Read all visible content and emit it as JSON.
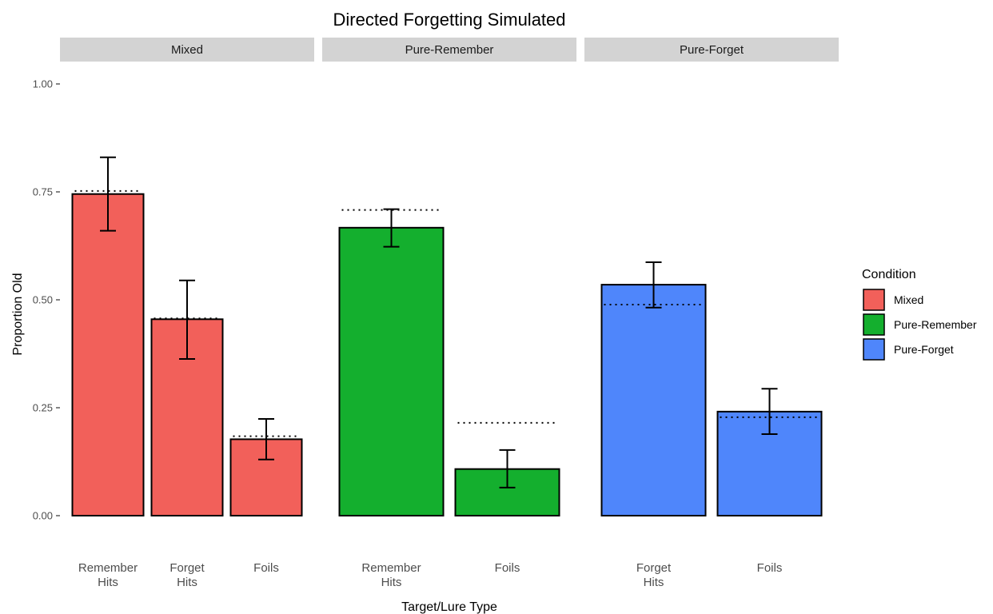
{
  "chart_data": {
    "type": "bar",
    "title": "Directed Forgetting Simulated",
    "xlabel": "Target/Lure Type",
    "ylabel": "Proportion Old",
    "ylim": [
      0,
      1
    ],
    "yticks": [
      "0.00",
      "0.25",
      "0.50",
      "0.75",
      "1.00"
    ],
    "legend": {
      "title": "Condition",
      "position": "right",
      "items": [
        {
          "name": "Mixed",
          "color": "#F8766D"
        },
        {
          "name": "Pure-Remember",
          "color": "#00BA38"
        },
        {
          "name": "Pure-Forget",
          "color": "#619CFF"
        }
      ]
    },
    "panels": [
      {
        "strip": "Mixed",
        "color": "#F2605A",
        "bars": [
          {
            "label": [
              "Remember",
              "Hits"
            ],
            "value": 0.745,
            "err_low": 0.66,
            "err_high": 0.83,
            "reference": 0.752
          },
          {
            "label": [
              "Forget",
              "Hits"
            ],
            "value": 0.455,
            "err_low": 0.363,
            "err_high": 0.545,
            "reference": 0.457
          },
          {
            "label": [
              "Foils"
            ],
            "value": 0.177,
            "err_low": 0.13,
            "err_high": 0.224,
            "reference": 0.184
          }
        ]
      },
      {
        "strip": "Pure-Remember",
        "color": "#14AF2E",
        "bars": [
          {
            "label": [
              "Remember",
              "Hits"
            ],
            "value": 0.667,
            "err_low": 0.623,
            "err_high": 0.71,
            "reference": 0.708
          },
          {
            "label": [
              "Foils"
            ],
            "value": 0.108,
            "err_low": 0.065,
            "err_high": 0.152,
            "reference": 0.215
          }
        ]
      },
      {
        "strip": "Pure-Forget",
        "color": "#4F86FB",
        "bars": [
          {
            "label": [
              "Forget",
              "Hits"
            ],
            "value": 0.535,
            "err_low": 0.482,
            "err_high": 0.587,
            "reference": 0.489
          },
          {
            "label": [
              "Foils"
            ],
            "value": 0.241,
            "err_low": 0.189,
            "err_high": 0.294,
            "reference": 0.228
          }
        ]
      }
    ]
  }
}
